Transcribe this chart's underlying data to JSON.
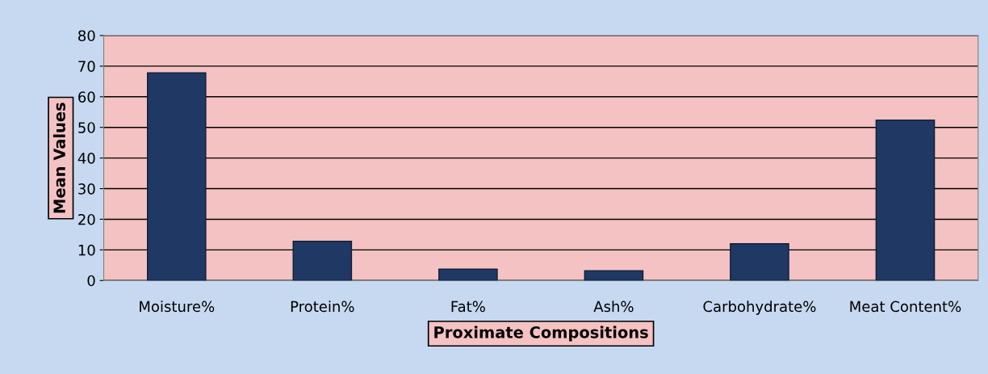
{
  "chart_data": {
    "type": "bar",
    "xlabel": "Proximate Compositions",
    "ylabel": "Mean Values",
    "categories": [
      "Moisture%",
      "Protein%",
      "Fat%",
      "Ash%",
      "Carbohydrate%",
      "Meat Content%"
    ],
    "values": [
      67.8,
      12.8,
      3.7,
      3.2,
      12,
      52.4
    ],
    "color": "#1f3864",
    "ylim": [
      0,
      80
    ],
    "yticks": [
      0,
      10,
      20,
      30,
      40,
      50,
      60,
      70,
      80
    ],
    "grid": "y",
    "legend": false
  }
}
